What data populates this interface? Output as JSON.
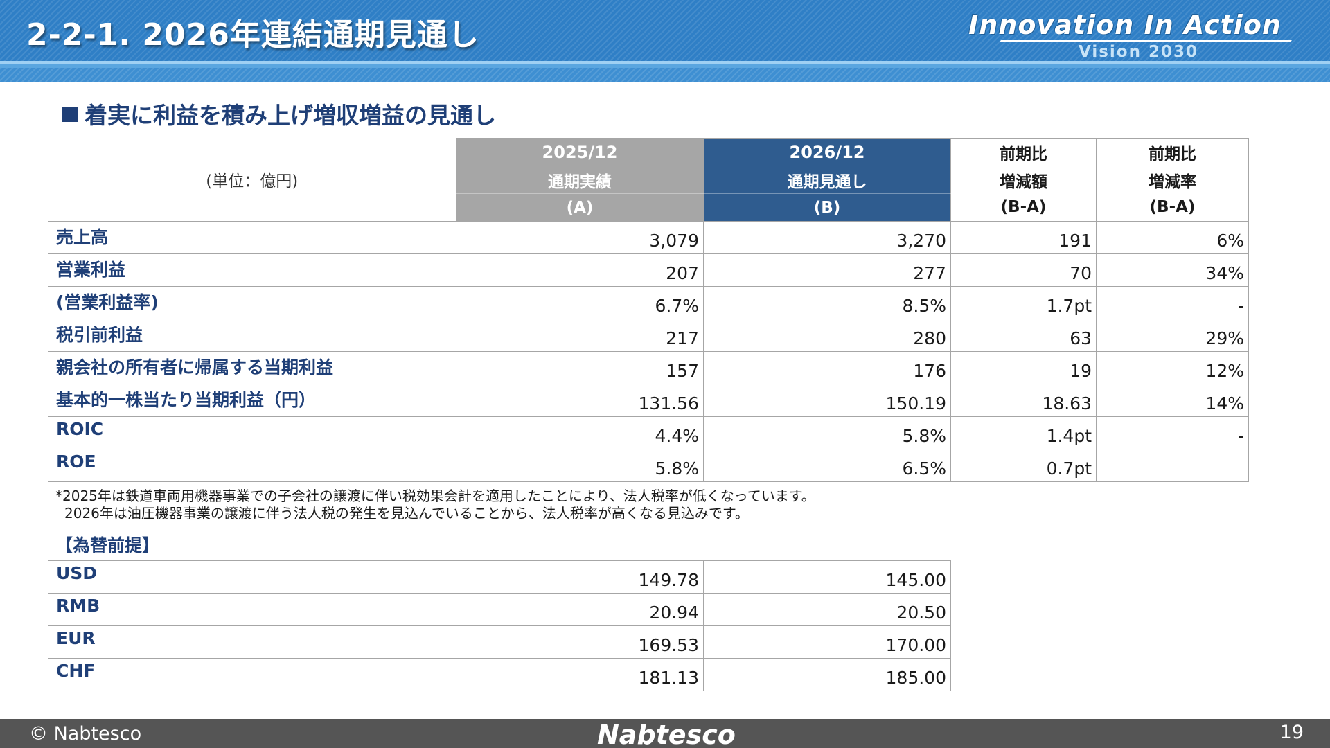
{
  "header": {
    "title": "2-2-1. 2026年連結通期見通し",
    "slogan": "Innovation In Action",
    "slogan_sub": "Vision 2030"
  },
  "subheading": "着実に利益を積み上げ増収増益の見通し",
  "table": {
    "unit": "(単位：億円)",
    "col_a": {
      "line1": "2025/12",
      "line2": "通期実績",
      "line3": "(A)"
    },
    "col_b": {
      "line1": "2026/12",
      "line2": "通期見通し",
      "line3": "(B)"
    },
    "col_c": {
      "line1": "前期比",
      "line2": "増減額",
      "line3": "(B-A)"
    },
    "col_d": {
      "line1": "前期比",
      "line2": "増減率",
      "line3": "(B-A)"
    },
    "rows": [
      {
        "label": "売上高",
        "a": "3,079",
        "b": "3,270",
        "c": "191",
        "d": "6%"
      },
      {
        "label": "営業利益",
        "a": "207",
        "b": "277",
        "c": "70",
        "d": "34%"
      },
      {
        "label": "(営業利益率)",
        "a": "6.7%",
        "b": "8.5%",
        "c": "1.7pt",
        "d": "-"
      },
      {
        "label": "税引前利益",
        "a": "217",
        "b": "280",
        "c": "63",
        "d": "29%"
      },
      {
        "label": "親会社の所有者に帰属する当期利益",
        "a": "157",
        "b": "176",
        "c": "19",
        "d": "12%"
      },
      {
        "label": "基本的一株当たり当期利益（円）",
        "a": "131.56",
        "b": "150.19",
        "c": "18.63",
        "d": "14%"
      },
      {
        "label": "ROIC",
        "a": "4.4%",
        "b": "5.8%",
        "c": "1.4pt",
        "d": "-"
      },
      {
        "label": "ROE",
        "a": "5.8%",
        "b": "6.5%",
        "c": "0.7pt",
        "d": ""
      }
    ]
  },
  "note": {
    "line1": "*2025年は鉄道車両用機器事業での子会社の譲渡に伴い税効果会計を適用したことにより、法人税率が低くなっています。",
    "line2": "2026年は油圧機器事業の譲渡に伴う法人税の発生を見込んでいることから、法人税率が高くなる見込みです。"
  },
  "fx": {
    "title": "【為替前提】",
    "rows": [
      {
        "label": "USD",
        "a": "149.78",
        "b": "145.00"
      },
      {
        "label": "RMB",
        "a": "20.94",
        "b": "20.50"
      },
      {
        "label": "EUR",
        "a": "169.53",
        "b": "170.00"
      },
      {
        "label": "CHF",
        "a": "181.13",
        "b": "185.00"
      }
    ]
  },
  "footer": {
    "copyright": "© Nabtesco",
    "logo": "Nabtesco",
    "page": "19"
  },
  "colors": {
    "header_blue": "#2f7fc6",
    "label_navy": "#1f3f77",
    "col_a_gray": "#a6a6a6",
    "col_b_blue": "#2f5c8f",
    "footer_gray": "#555555"
  }
}
